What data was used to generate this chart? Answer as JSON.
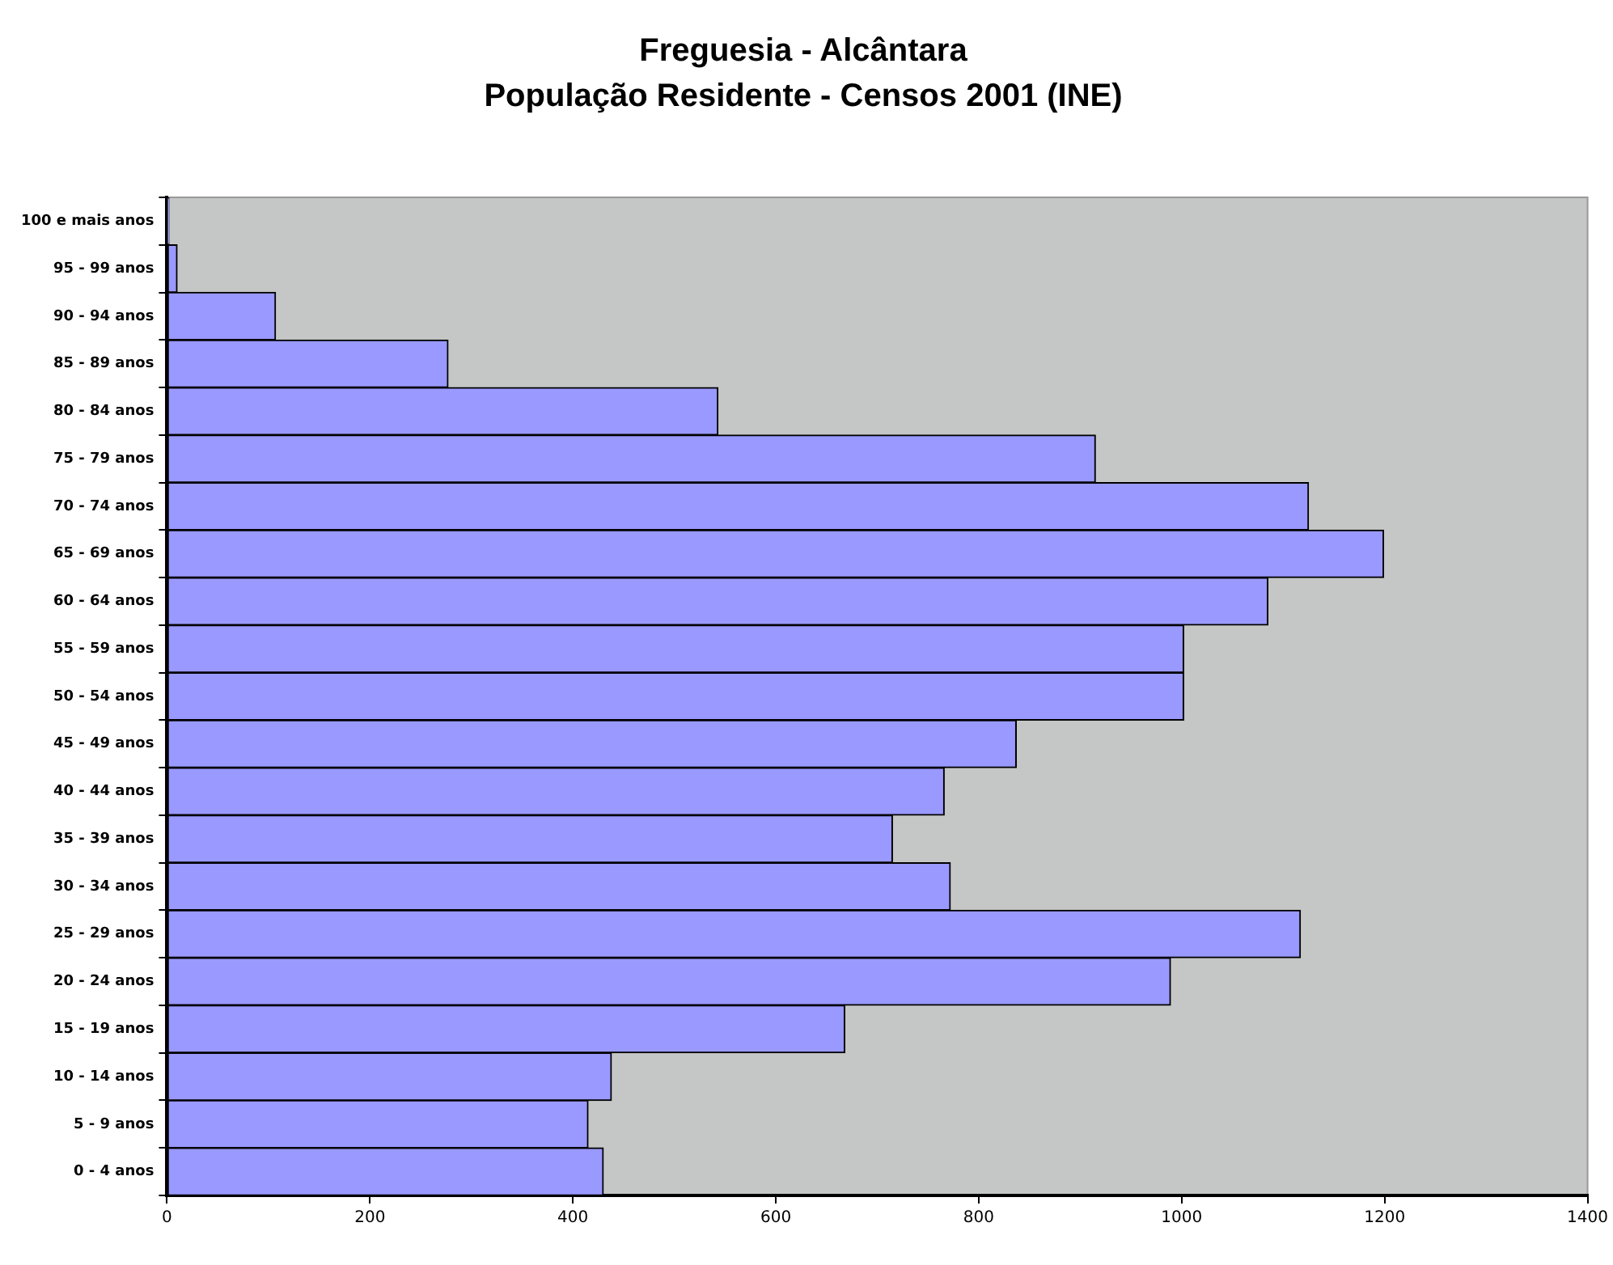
{
  "chart_data": {
    "type": "bar",
    "orientation": "horizontal",
    "title": "Freguesia - Alcântara",
    "subtitle": "População Residente - Censos 2001 (INE)",
    "categories": [
      "100 e mais anos",
      "95 - 99 anos",
      "90 - 94 anos",
      "85 - 89 anos",
      "80 - 84 anos",
      "75 - 79 anos",
      "70 - 74 anos",
      "65 - 69 anos",
      "60 - 64 anos",
      "55 - 59 anos",
      "50 - 54 anos",
      "45 - 49 anos",
      "40 - 44 anos",
      "35 - 39 anos",
      "30 - 34 anos",
      "25 - 29 anos",
      "20 - 24 anos",
      "15 - 19 anos",
      "10 - 14 anos",
      "5 - 9 anos",
      "0 - 4 anos"
    ],
    "values": [
      2,
      10,
      107,
      277,
      543,
      915,
      1125,
      1199,
      1085,
      1002,
      1002,
      837,
      766,
      715,
      772,
      1117,
      989,
      668,
      438,
      415,
      430
    ],
    "color": "#9999ff",
    "xlim": [
      0,
      1400
    ],
    "xticks": [
      0,
      200,
      400,
      600,
      800,
      1000,
      1200,
      1400
    ],
    "grid": false,
    "legend": false
  }
}
